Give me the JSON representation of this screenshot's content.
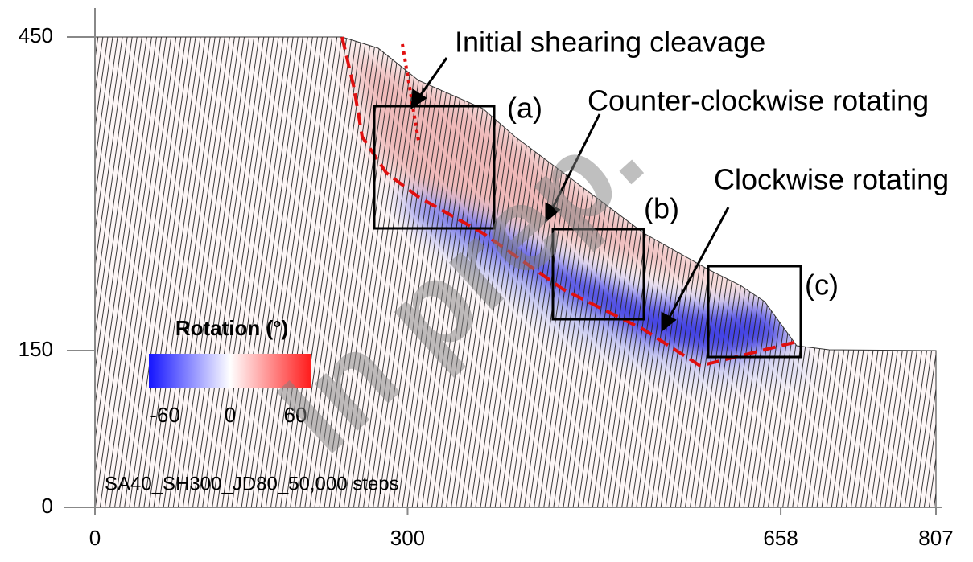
{
  "chart_data": {
    "type": "figure",
    "xlim": [
      0,
      807
    ],
    "ylim": [
      0,
      450
    ],
    "xticks": [
      0,
      300,
      658,
      807
    ],
    "yticks": [
      0,
      150,
      450
    ],
    "annotations": [
      "Initial shearing cleavage",
      "Counter-clockwise rotating",
      "Clockwise rotating",
      "(a)",
      "(b)",
      "(c)"
    ],
    "run_label": "SA40_SH300_JD80_50,000 steps",
    "watermark": "In prep.",
    "colorbar": {
      "title": "Rotation (°)",
      "lim": [
        -60,
        60
      ],
      "ticks": [
        -60,
        0,
        60
      ]
    }
  }
}
